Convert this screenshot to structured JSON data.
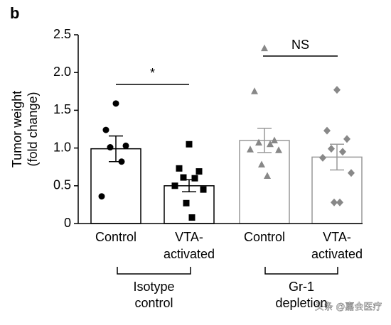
{
  "chart_data": {
    "type": "bar",
    "panel_label": "b",
    "y_label": [
      "Tumor weight",
      "(fold change)"
    ],
    "categories": [
      [
        "Control"
      ],
      [
        "VTA-",
        "activated"
      ],
      [
        "Control"
      ],
      [
        "VTA-",
        "activated"
      ]
    ],
    "values": [
      0.99,
      0.5,
      1.1,
      0.88
    ],
    "errors": [
      0.17,
      0.08,
      0.16,
      0.17
    ],
    "bar_colors": [
      "#000000",
      "#000000",
      "#999999",
      "#999999"
    ],
    "point_colors": [
      "#000000",
      "#000000",
      "#888888",
      "#888888"
    ],
    "markers": [
      "circle",
      "square",
      "triangle",
      "diamond"
    ],
    "points": [
      [
        1.59,
        1.24,
        1.03,
        1.01,
        0.82,
        0.36
      ],
      [
        1.05,
        0.73,
        0.69,
        0.61,
        0.6,
        0.5,
        0.45,
        0.27,
        0.08
      ],
      [
        2.32,
        1.75,
        1.1,
        1.07,
        1.05,
        0.98,
        0.97,
        0.78,
        0.63
      ],
      [
        1.77,
        1.23,
        1.12,
        0.99,
        0.95,
        0.87,
        0.67,
        0.28,
        0.28
      ]
    ],
    "ylim": [
      0,
      2.5
    ],
    "yticks": [
      0,
      0.5,
      {
        "value": 1,
        "label": "1.0"
      },
      1.5,
      {
        "value": 2,
        "label": "2.0"
      },
      2.5
    ],
    "annotations": [
      {
        "text": "*"
      },
      {
        "text": "NS"
      }
    ],
    "groups": [
      {
        "label": [
          "Isotype",
          "control"
        ]
      },
      {
        "label": [
          "Gr-1",
          "depletion"
        ]
      }
    ],
    "watermark": "头条 @嘉会医疗"
  }
}
